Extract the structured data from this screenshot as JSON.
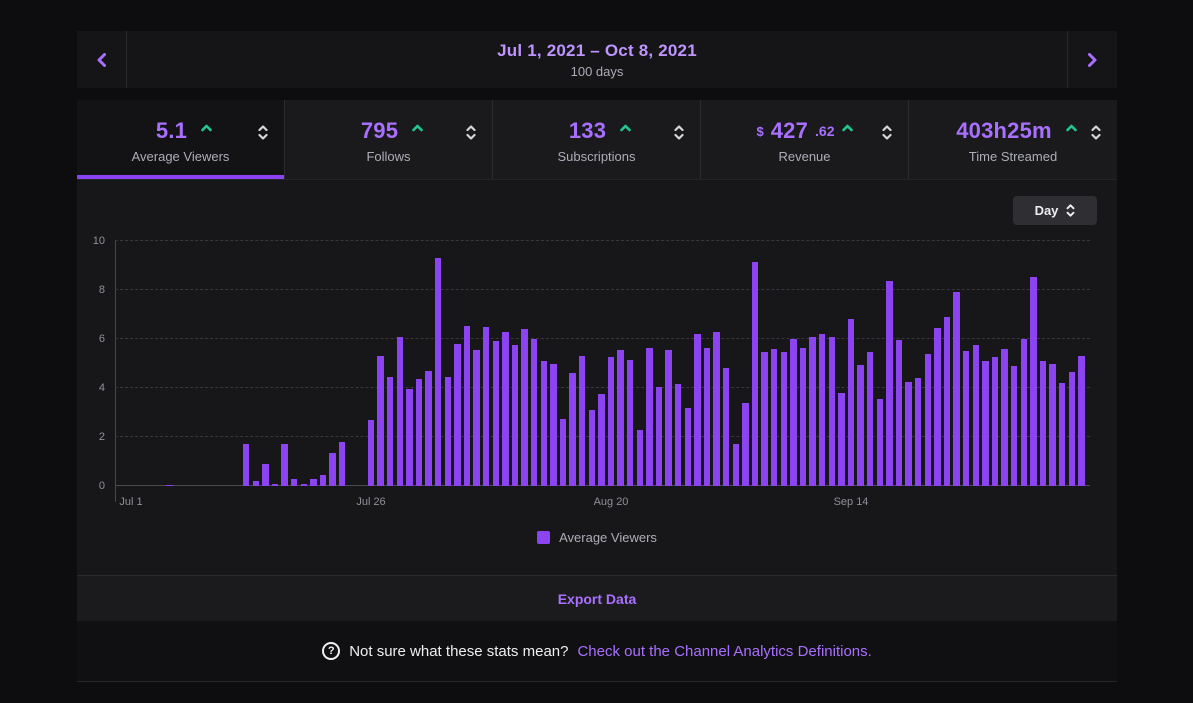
{
  "date_nav": {
    "title": "Jul 1, 2021 – Oct 8, 2021",
    "subtitle": "100 days"
  },
  "stats_tabs": [
    {
      "prefix": "",
      "value": "5.1",
      "suffix": "",
      "label": "Average Viewers",
      "trend": "up",
      "selected": true
    },
    {
      "prefix": "",
      "value": "795",
      "suffix": "",
      "label": "Follows",
      "trend": "up",
      "selected": false
    },
    {
      "prefix": "",
      "value": "133",
      "suffix": "",
      "label": "Subscriptions",
      "trend": "up",
      "selected": false
    },
    {
      "prefix": "$",
      "value": "427",
      "suffix": ".62",
      "label": "Revenue",
      "trend": "up",
      "selected": false
    },
    {
      "prefix": "",
      "value": "403h25m",
      "suffix": "",
      "label": "Time Streamed",
      "trend": "up",
      "selected": false
    }
  ],
  "interval_select": {
    "value": "Day"
  },
  "chart_data": {
    "type": "bar",
    "series_name": "Average Viewers",
    "x_axis": "date (Jul 1 2021 - Oct 8 2021, one bar per day)",
    "ylabel": "",
    "ylim": [
      0,
      10
    ],
    "yticks": [
      0,
      2,
      4,
      6,
      8,
      10
    ],
    "grid": "horizontal-dashed",
    "legend_position": "bottom-center",
    "bar_color": "#8c44f0",
    "x_ticks": [
      {
        "label": "Jul 1",
        "index": 0
      },
      {
        "label": "Jul 26",
        "index": 25
      },
      {
        "label": "Aug 20",
        "index": 50
      },
      {
        "label": "Sep 14",
        "index": 75
      }
    ],
    "values": [
      0,
      0,
      0,
      0,
      0.05,
      0,
      0,
      0,
      0,
      0,
      0,
      0,
      1.7,
      0.2,
      0.9,
      0.1,
      1.7,
      0.3,
      0.1,
      0.3,
      0.45,
      1.35,
      1.8,
      0,
      0,
      2.7,
      5.3,
      4.45,
      6.1,
      3.95,
      4.35,
      4.7,
      9.3,
      4.45,
      5.8,
      6.55,
      5.55,
      6.5,
      5.9,
      6.3,
      5.75,
      6.4,
      6.0,
      5.1,
      5.0,
      2.75,
      4.6,
      5.3,
      3.1,
      3.75,
      5.25,
      5.55,
      5.15,
      2.3,
      5.65,
      4.05,
      5.55,
      4.15,
      3.2,
      6.2,
      5.65,
      6.3,
      4.8,
      1.7,
      3.4,
      9.15,
      5.45,
      5.6,
      5.45,
      6.0,
      5.65,
      6.1,
      6.2,
      6.1,
      3.8,
      6.8,
      4.95,
      5.45,
      3.55,
      8.35,
      5.95,
      4.25,
      4.4,
      5.4,
      6.45,
      6.9,
      7.9,
      5.5,
      5.75,
      5.1,
      5.25,
      5.6,
      4.9,
      6.0,
      8.55,
      5.1,
      5.0,
      4.2,
      4.65,
      5.3
    ]
  },
  "legend": {
    "label": "Average Viewers"
  },
  "export_bar": {
    "label": "Export Data"
  },
  "footer": {
    "help_icon": "?",
    "text": "Not sure what these stats mean?",
    "link": "Check out the Channel Analytics Definitions."
  },
  "colors": {
    "accent_purple": "#8c44f0",
    "light_purple": "#a970ff",
    "lavender": "#bf94ff",
    "positive_green": "#1fc98c",
    "panel_bg": "#17171a",
    "page_bg": "#0d0d0f"
  }
}
